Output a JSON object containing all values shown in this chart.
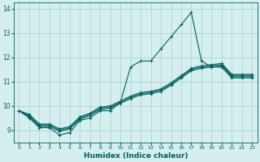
{
  "xlabel": "Humidex (Indice chaleur)",
  "x": [
    0,
    1,
    2,
    3,
    4,
    5,
    6,
    7,
    8,
    9,
    10,
    11,
    12,
    13,
    14,
    15,
    16,
    17,
    18,
    19,
    20,
    21,
    22,
    23
  ],
  "line1": [
    9.8,
    9.5,
    9.1,
    9.1,
    8.8,
    8.9,
    9.4,
    9.5,
    9.8,
    9.8,
    10.15,
    11.6,
    11.85,
    11.85,
    12.35,
    12.85,
    13.35,
    13.85,
    11.85,
    11.6,
    11.6,
    11.15,
    11.15,
    11.15
  ],
  "line2": [
    9.8,
    9.55,
    9.15,
    9.15,
    8.95,
    9.05,
    9.45,
    9.6,
    9.85,
    9.9,
    10.1,
    10.3,
    10.45,
    10.5,
    10.6,
    10.85,
    11.15,
    11.45,
    11.55,
    11.6,
    11.65,
    11.2,
    11.2,
    11.2
  ],
  "line3": [
    9.8,
    9.6,
    9.2,
    9.2,
    9.0,
    9.1,
    9.5,
    9.65,
    9.9,
    9.95,
    10.15,
    10.35,
    10.5,
    10.55,
    10.65,
    10.9,
    11.2,
    11.5,
    11.6,
    11.65,
    11.7,
    11.25,
    11.25,
    11.25
  ],
  "line4": [
    9.8,
    9.65,
    9.25,
    9.25,
    9.05,
    9.15,
    9.55,
    9.7,
    9.95,
    10.0,
    10.2,
    10.4,
    10.55,
    10.6,
    10.7,
    10.95,
    11.25,
    11.55,
    11.65,
    11.7,
    11.75,
    11.3,
    11.3,
    11.3
  ],
  "line_color": "#006060",
  "bg_color": "#d5eeee",
  "grid_color": "#aacece",
  "ylim": [
    8.5,
    14.25
  ],
  "yticks": [
    9,
    10,
    11,
    12,
    13,
    14
  ],
  "xticks": [
    0,
    1,
    2,
    3,
    4,
    5,
    6,
    7,
    8,
    9,
    10,
    11,
    12,
    13,
    14,
    15,
    16,
    17,
    18,
    19,
    20,
    21,
    22,
    23
  ],
  "marker": "+",
  "markersize": 3,
  "linewidth": 0.8
}
